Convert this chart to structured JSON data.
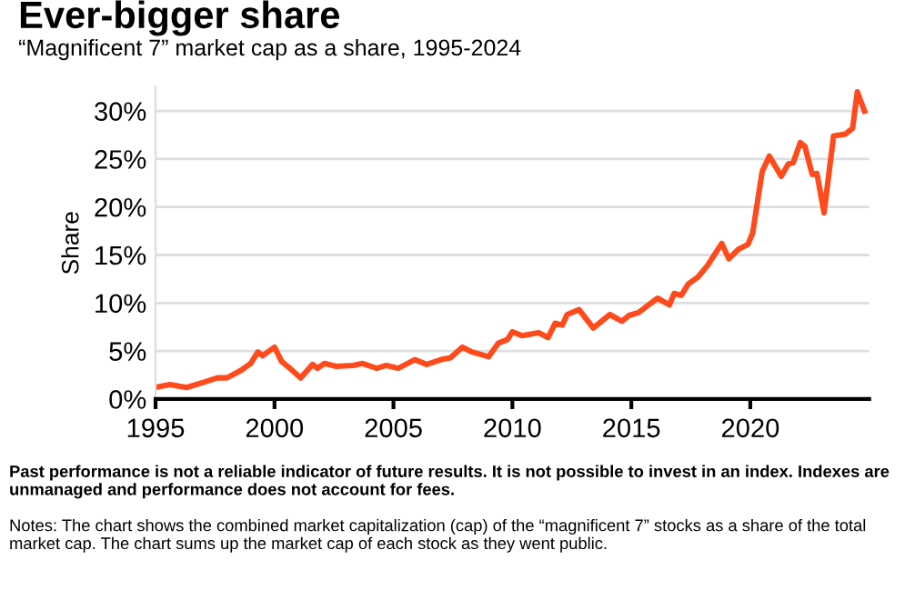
{
  "chart_data": {
    "type": "line",
    "title": "Ever-bigger share",
    "subtitle": "“Magnificent 7” market cap as a share, 1995-2024",
    "ylabel": "Share",
    "annotations": [
      "Past performance is not a reliable indicator of future results. It is not possible to invest in an index. Indexes are unmanaged and performance does not account for fees.",
      "Notes: The chart shows the combined market capitalization (cap) of the “magnificent 7” stocks as a share of the total market cap. The chart sums up the market cap of each stock as they went public."
    ],
    "x": [
      1995.0,
      1995.6,
      1996.3,
      1997.1,
      1997.6,
      1998.0,
      1998.6,
      1999.0,
      1999.3,
      1999.5,
      2000.0,
      2000.3,
      2000.6,
      2001.1,
      2001.6,
      2001.8,
      2002.1,
      2002.6,
      2003.3,
      2003.7,
      2004.3,
      2004.7,
      2005.2,
      2005.9,
      2006.4,
      2007.0,
      2007.4,
      2007.9,
      2008.3,
      2009.0,
      2009.4,
      2009.8,
      2010.0,
      2010.4,
      2011.1,
      2011.5,
      2011.8,
      2012.1,
      2012.3,
      2012.8,
      2013.4,
      2014.1,
      2014.6,
      2014.9,
      2015.3,
      2016.1,
      2016.6,
      2016.8,
      2017.1,
      2017.4,
      2017.8,
      2018.2,
      2018.8,
      2019.1,
      2019.5,
      2019.9,
      2020.1,
      2020.5,
      2020.8,
      2021.3,
      2021.6,
      2021.8,
      2022.1,
      2022.3,
      2022.6,
      2022.8,
      2023.1,
      2023.5,
      2024.0,
      2024.3,
      2024.5,
      2024.8
    ],
    "series": [
      {
        "color": "#ff4a1c",
        "values": [
          1.2,
          1.5,
          1.2,
          1.8,
          2.2,
          2.2,
          3.0,
          3.7,
          4.9,
          4.5,
          5.4,
          3.9,
          3.3,
          2.2,
          3.6,
          3.2,
          3.7,
          3.4,
          3.5,
          3.7,
          3.2,
          3.5,
          3.2,
          4.1,
          3.6,
          4.1,
          4.3,
          5.4,
          4.9,
          4.4,
          5.8,
          6.2,
          7.0,
          6.6,
          6.9,
          6.4,
          7.9,
          7.7,
          8.8,
          9.3,
          7.4,
          8.8,
          8.1,
          8.7,
          9.0,
          10.5,
          9.8,
          11.0,
          10.8,
          12.0,
          12.7,
          13.9,
          16.2,
          14.6,
          15.6,
          16.1,
          17.3,
          23.7,
          25.3,
          23.2,
          24.5,
          24.6,
          26.7,
          26.3,
          23.4,
          23.5,
          19.4,
          27.4,
          27.6,
          28.2,
          32.0,
          30.0
        ]
      }
    ],
    "xlim": [
      1995,
      2025
    ],
    "xticks": [
      1995,
      2000,
      2005,
      2010,
      2015,
      2020
    ],
    "ylim": [
      0,
      32.5
    ],
    "yticks": [
      {
        "value": 0,
        "label": "0%"
      },
      {
        "value": 5,
        "label": "5%"
      },
      {
        "value": 10,
        "label": "10%"
      },
      {
        "value": 15,
        "label": "15%"
      },
      {
        "value": 20,
        "label": "20%"
      },
      {
        "value": 25,
        "label": "25%"
      },
      {
        "value": 30,
        "label": "30%"
      }
    ],
    "grid": "y",
    "marker": "none",
    "line_style": "solid"
  }
}
